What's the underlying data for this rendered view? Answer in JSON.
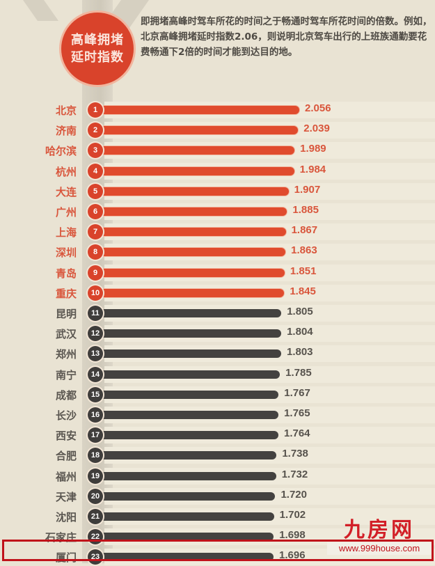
{
  "header": {
    "badge_line1": "高峰拥堵",
    "badge_line2": "延时指数",
    "description": "即拥堵高峰时驾车所花的时间之于畅通时驾车所花时间的倍数。例如，北京高峰拥堵延时指数2.06，则说明北京驾车出行的上班族通勤要花费畅通下2倍的时间才能到达目的地。"
  },
  "colors": {
    "top10": "#e04b2d",
    "others": "#444240",
    "background": "#e9e3d3",
    "highlight": "#c0121a"
  },
  "watermark": {
    "logo": "九房网",
    "url": "www.999house.com"
  },
  "chart_data": {
    "type": "bar",
    "orientation": "horizontal",
    "title": "高峰拥堵延时指数",
    "xlabel": "",
    "ylabel": "",
    "categories": [
      "北京",
      "济南",
      "哈尔滨",
      "杭州",
      "大连",
      "广州",
      "上海",
      "深圳",
      "青岛",
      "重庆",
      "昆明",
      "武汉",
      "郑州",
      "南宁",
      "成都",
      "长沙",
      "西安",
      "合肥",
      "福州",
      "天津",
      "沈阳",
      "石家庄",
      "厦门"
    ],
    "ranks": [
      1,
      2,
      3,
      4,
      5,
      6,
      7,
      8,
      9,
      10,
      11,
      12,
      13,
      14,
      15,
      16,
      17,
      18,
      19,
      20,
      21,
      22,
      23
    ],
    "values": [
      2.056,
      2.039,
      1.989,
      1.984,
      1.907,
      1.885,
      1.867,
      1.863,
      1.851,
      1.845,
      1.805,
      1.804,
      1.803,
      1.785,
      1.767,
      1.765,
      1.764,
      1.738,
      1.732,
      1.72,
      1.702,
      1.698,
      1.696
    ],
    "value_labels": [
      "2.056",
      "2.039",
      "1.989",
      "1.984",
      "1.907",
      "1.885",
      "1.867",
      "1.863",
      "1.851",
      "1.845",
      "1.805",
      "1.804",
      "1.803",
      "1.785",
      "1.767",
      "1.765",
      "1.764",
      "1.738",
      "1.732",
      "1.720",
      "1.702",
      "1.698",
      "1.696"
    ],
    "highlight_top_n": 10,
    "highlighted_row": "厦门",
    "grid": false,
    "legend": null
  }
}
